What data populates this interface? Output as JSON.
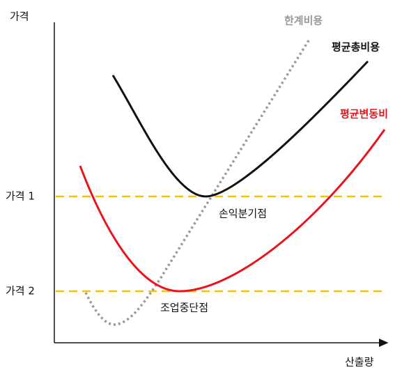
{
  "axes": {
    "y_label": "가격",
    "x_label": "산출량"
  },
  "curves": [
    {
      "label": "한계비용"
    },
    {
      "label": "평균총비용"
    },
    {
      "label": "평균변동비"
    }
  ],
  "levels": [
    {
      "label": "가격 1"
    },
    {
      "label": "가격 2"
    }
  ],
  "points": [
    {
      "label": "손익분기점"
    },
    {
      "label": "조업중단점"
    }
  ]
}
